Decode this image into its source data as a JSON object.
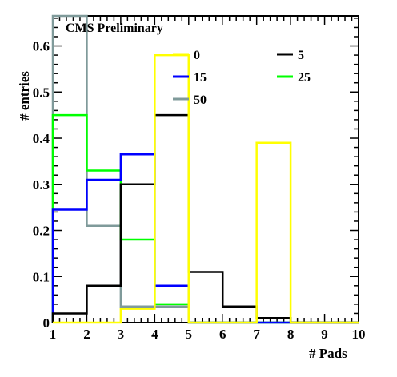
{
  "chart_data": {
    "type": "histogram",
    "title": "CMS Preliminary",
    "xlabel": "# Pads",
    "ylabel": "# entries",
    "xlim": [
      1,
      10
    ],
    "ylim": [
      0,
      0.665
    ],
    "x_ticks": [
      1,
      2,
      3,
      4,
      5,
      6,
      7,
      8,
      9,
      10
    ],
    "y_ticks": [
      0,
      0.1,
      0.2,
      0.3,
      0.4,
      0.5,
      0.6
    ],
    "y_tick_labels": [
      "0",
      "0.1",
      "0.2",
      "0.3",
      "0.4",
      "0.5",
      "0.6"
    ],
    "bin_edges": [
      1,
      2,
      3,
      4,
      5,
      6,
      7,
      8,
      9,
      10
    ],
    "legend_placement": "top-right",
    "series": [
      {
        "name": "0",
        "color": "#ffff00",
        "values": [
          0.0,
          0.0,
          0.03,
          0.58,
          0.0,
          0.0,
          0.39,
          0.0,
          0.0
        ]
      },
      {
        "name": "5",
        "color": "#000000",
        "values": [
          0.02,
          0.08,
          0.3,
          0.45,
          0.11,
          0.035,
          0.01,
          0.0,
          0.0
        ]
      },
      {
        "name": "15",
        "color": "#0000ff",
        "values": [
          0.245,
          0.31,
          0.365,
          0.08,
          0.0,
          0.0,
          0.0,
          0.0,
          0.0
        ]
      },
      {
        "name": "25",
        "color": "#00ff00",
        "values": [
          0.45,
          0.33,
          0.18,
          0.04,
          0.0,
          0.0,
          0.0,
          0.0,
          0.0
        ]
      },
      {
        "name": "50",
        "color": "#7f9a9a",
        "values": [
          0.665,
          0.21,
          0.035,
          0.035,
          0.0,
          0.0,
          0.0,
          0.0,
          0.0
        ]
      }
    ]
  }
}
